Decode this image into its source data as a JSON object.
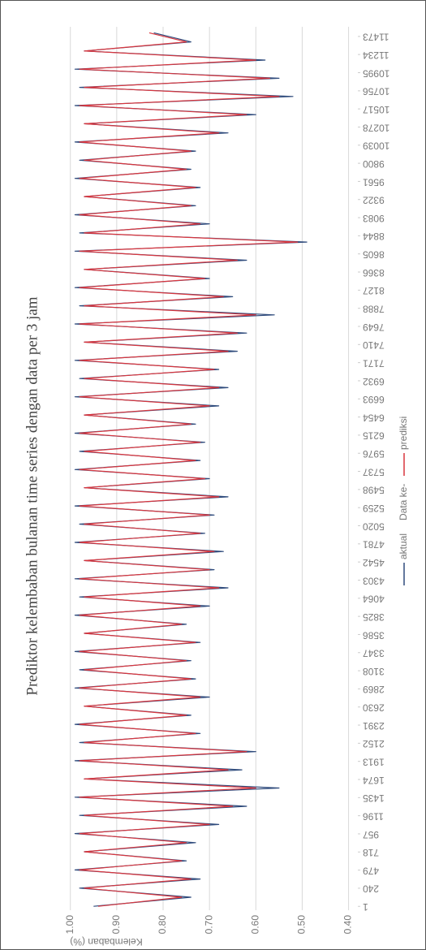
{
  "chart_data": {
    "type": "line",
    "title": "Prediktor kelembaban bulanan time series dengan data per 3 jam",
    "y_label": "Kelembaban (%)",
    "x_label": "Data ke-",
    "legend": "bottom",
    "grid": true,
    "x": [
      1,
      121,
      241,
      361,
      481,
      601,
      721,
      841,
      961,
      1081,
      1201,
      1321,
      1441,
      1561,
      1681,
      1801,
      1921,
      2041,
      2161,
      2281,
      2401,
      2521,
      2641,
      2761,
      2881,
      3001,
      3121,
      3241,
      3361,
      3481,
      3601,
      3721,
      3841,
      3961,
      4081,
      4201,
      4321,
      4441,
      4561,
      4681,
      4801,
      4921,
      5041,
      5161,
      5281,
      5401,
      5521,
      5641,
      5761,
      5881,
      6001,
      6121,
      6241,
      6361,
      6481,
      6601,
      6721,
      6841,
      6961,
      7081,
      7201,
      7321,
      7441,
      7561,
      7681,
      7801,
      7921,
      8041,
      8161,
      8281,
      8401,
      8521,
      8641,
      8761,
      8881,
      9001,
      9121,
      9241,
      9361,
      9481,
      9601,
      9721,
      9841,
      9961,
      10081,
      10201,
      10321,
      10441,
      10561,
      10681,
      10801,
      10921,
      11041,
      11161,
      11281,
      11401,
      11521
    ],
    "series": [
      {
        "name": "aktual",
        "color": "#2f4b7c",
        "values": [
          0.95,
          0.74,
          0.98,
          0.72,
          0.99,
          0.75,
          0.97,
          0.73,
          0.99,
          0.68,
          0.98,
          0.62,
          0.99,
          0.55,
          0.97,
          0.63,
          0.99,
          0.6,
          0.98,
          0.72,
          0.99,
          0.74,
          0.97,
          0.7,
          0.99,
          0.73,
          0.98,
          0.74,
          0.99,
          0.72,
          0.97,
          0.75,
          0.99,
          0.7,
          0.98,
          0.66,
          0.99,
          0.69,
          0.97,
          0.67,
          0.99,
          0.71,
          0.98,
          0.69,
          0.99,
          0.66,
          0.97,
          0.7,
          0.99,
          0.72,
          0.98,
          0.71,
          0.99,
          0.73,
          0.97,
          0.68,
          0.99,
          0.66,
          0.98,
          0.68,
          0.99,
          0.64,
          0.97,
          0.62,
          0.99,
          0.56,
          0.98,
          0.65,
          0.99,
          0.7,
          0.97,
          0.62,
          0.99,
          0.49,
          0.98,
          0.7,
          0.99,
          0.73,
          0.97,
          0.72,
          0.99,
          0.74,
          0.98,
          0.73,
          0.99,
          0.66,
          0.97,
          0.6,
          0.99,
          0.52,
          0.98,
          0.55,
          0.99,
          0.58,
          0.97,
          0.74,
          0.82
        ]
      },
      {
        "name": "prediksi",
        "color": "#d9363e",
        "values": [
          0.94,
          0.76,
          0.97,
          0.74,
          0.98,
          0.76,
          0.97,
          0.75,
          0.98,
          0.7,
          0.97,
          0.65,
          0.98,
          0.6,
          0.97,
          0.66,
          0.98,
          0.62,
          0.97,
          0.73,
          0.98,
          0.75,
          0.97,
          0.72,
          0.98,
          0.74,
          0.97,
          0.75,
          0.98,
          0.73,
          0.97,
          0.76,
          0.98,
          0.72,
          0.97,
          0.68,
          0.98,
          0.7,
          0.97,
          0.69,
          0.98,
          0.72,
          0.97,
          0.7,
          0.98,
          0.68,
          0.97,
          0.71,
          0.98,
          0.73,
          0.97,
          0.72,
          0.98,
          0.74,
          0.97,
          0.7,
          0.98,
          0.68,
          0.97,
          0.69,
          0.98,
          0.66,
          0.97,
          0.64,
          0.98,
          0.6,
          0.97,
          0.67,
          0.98,
          0.71,
          0.97,
          0.64,
          0.98,
          0.51,
          0.97,
          0.72,
          0.98,
          0.74,
          0.97,
          0.73,
          0.98,
          0.75,
          0.97,
          0.74,
          0.98,
          0.68,
          0.97,
          0.62,
          0.98,
          0.55,
          0.97,
          0.57,
          0.98,
          0.6,
          0.97,
          0.75,
          0.83
        ]
      }
    ],
    "xlim": [
      -50,
      11600
    ],
    "xticks": [
      1,
      240,
      479,
      718,
      957,
      1196,
      1435,
      1674,
      1913,
      2152,
      2391,
      2630,
      2869,
      3108,
      3347,
      3586,
      3825,
      4064,
      4303,
      4542,
      4781,
      5020,
      5259,
      5498,
      5737,
      5976,
      6215,
      6454,
      6693,
      6932,
      7171,
      7410,
      7649,
      7888,
      8127,
      8366,
      8605,
      8844,
      9083,
      9322,
      9561,
      9800,
      10039,
      10278,
      10517,
      10756,
      10995,
      11234,
      11473
    ],
    "ylim": [
      0.38,
      1.01
    ],
    "yticks": [
      {
        "value": 0.4,
        "label": "0.40"
      },
      {
        "value": 0.5,
        "label": "0.50"
      },
      {
        "value": 0.6,
        "label": "0.60"
      },
      {
        "value": 0.7,
        "label": "0.70"
      },
      {
        "value": 0.8,
        "label": "0.80"
      },
      {
        "value": 0.9,
        "label": "0.90"
      },
      {
        "value": 1,
        "label": "1.00"
      }
    ]
  }
}
